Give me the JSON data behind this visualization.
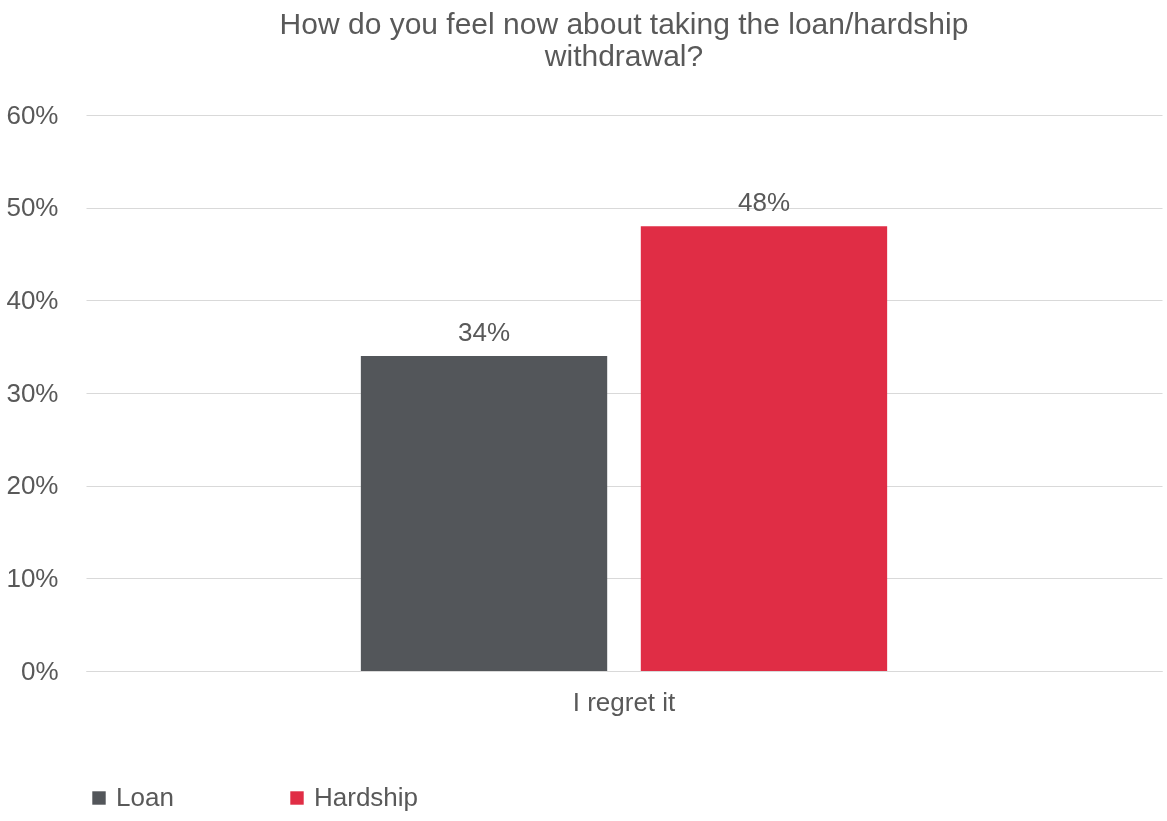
{
  "chart_data": {
    "type": "bar",
    "title": "How do you feel now about taking the loan/hardship withdrawal?",
    "categories": [
      "I regret it"
    ],
    "series": [
      {
        "name": "Loan",
        "color": "#53565a",
        "values": [
          34
        ],
        "value_labels": [
          "34%"
        ]
      },
      {
        "name": "Hardship",
        "color": "#e02d45",
        "values": [
          48
        ],
        "value_labels": [
          "48%"
        ]
      }
    ],
    "ylim": [
      0,
      60
    ],
    "yticks": [
      {
        "value": 0,
        "label": "0%"
      },
      {
        "value": 10,
        "label": "10%"
      },
      {
        "value": 20,
        "label": "20%"
      },
      {
        "value": 30,
        "label": "30%"
      },
      {
        "value": 40,
        "label": "40%"
      },
      {
        "value": 50,
        "label": "50%"
      },
      {
        "value": 60,
        "label": "60%"
      }
    ],
    "grid": "y",
    "legend": "bottom"
  }
}
